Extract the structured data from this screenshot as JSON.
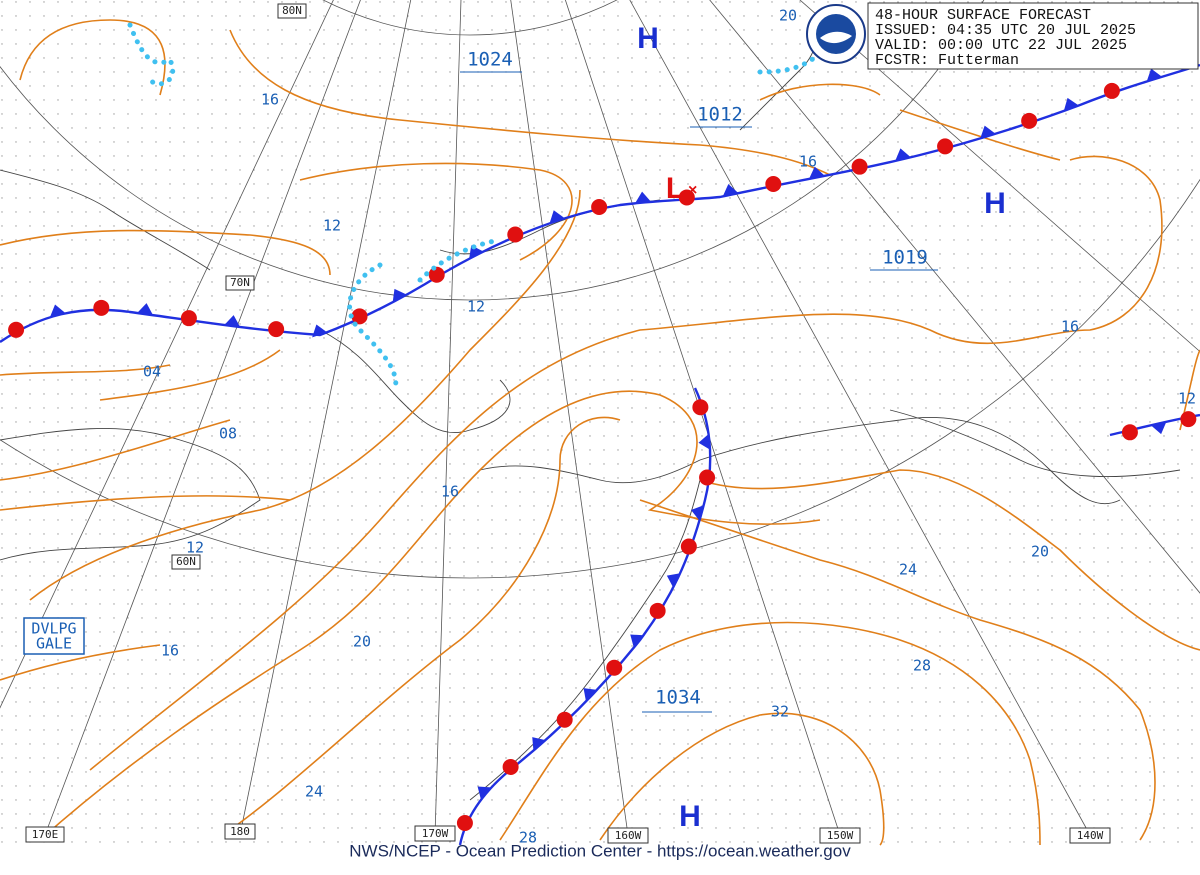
{
  "header": {
    "lines": [
      "48-HOUR SURFACE FORECAST",
      "ISSUED: 04:35 UTC 20 JUL 2025",
      "VALID:  00:00 UTC 22 JUL 2025",
      "FCSTR:  Futterman"
    ]
  },
  "centers": [
    "H",
    "H",
    "H",
    "L"
  ],
  "pressures": [
    "1024",
    "1012",
    "1019",
    "1034"
  ],
  "isobar_labels": [
    "16",
    "12",
    "12",
    "04",
    "08",
    "16",
    "12",
    "16",
    "20",
    "24",
    "28",
    "32",
    "28",
    "24",
    "20",
    "16",
    "12",
    "16",
    "20"
  ],
  "latitude_labels": [
    "80N",
    "70N",
    "60N"
  ],
  "longitude_labels": [
    "170E",
    "180",
    "170W",
    "160W",
    "150W",
    "140W"
  ],
  "warning": [
    "DVLPG",
    "GALE"
  ],
  "footer": "NWS/NCEP - Ocean Prediction Center - https://ocean.weather.gov"
}
